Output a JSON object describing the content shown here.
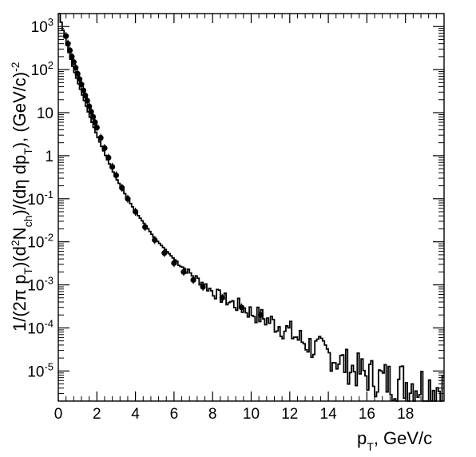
{
  "chart_data": {
    "type": "line",
    "xlabel": "p_T, GeV/c",
    "ylabel": "1/(2π p_T)(d²N_ch)/(dη dp_T), (GeV/c)⁻²",
    "xlim": [
      0,
      20
    ],
    "ylim": [
      2e-06,
      2000
    ],
    "yscale": "log",
    "grid": false,
    "legend": "none",
    "x_ticks": [
      0,
      2,
      4,
      6,
      8,
      10,
      12,
      14,
      16,
      18
    ],
    "x_tick_labels": [
      "0",
      "2",
      "4",
      "6",
      "8",
      "10",
      "12",
      "14",
      "16",
      "18"
    ],
    "y_ticks": [
      1e-05,
      0.0001,
      0.001,
      0.01,
      0.1,
      1,
      10,
      100,
      1000
    ],
    "y_tick_labels": [
      {
        "base": "10",
        "exp": "-5"
      },
      {
        "base": "10",
        "exp": "-4"
      },
      {
        "base": "10",
        "exp": "-3"
      },
      {
        "base": "10",
        "exp": "-2"
      },
      {
        "base": "10",
        "exp": "-1"
      },
      {
        "base": "1",
        "exp": ""
      },
      {
        "base": "10",
        "exp": ""
      },
      {
        "base": "10",
        "exp": "2"
      },
      {
        "base": "10",
        "exp": "3"
      }
    ],
    "series": [
      {
        "style": "histogram-step",
        "x": [
          0.05,
          0.2,
          0.5,
          0.8,
          1.2,
          1.6,
          2.0,
          2.5,
          3.0,
          3.5,
          4.0,
          4.5,
          5.0,
          5.5,
          6.0,
          6.5,
          7.0,
          7.5,
          8.0,
          8.5,
          9.0,
          9.5,
          10.0,
          10.5,
          11.0,
          11.5,
          12.0,
          12.5,
          13.0,
          13.5,
          14.0,
          14.5,
          15.0,
          15.5,
          16.0,
          16.5,
          17.0,
          17.5,
          18.0,
          18.5,
          19.0,
          19.5,
          19.9
        ],
        "y": [
          2000,
          1000,
          300,
          100,
          30,
          9,
          3,
          0.9,
          0.3,
          0.12,
          0.05,
          0.025,
          0.012,
          0.007,
          0.004,
          0.0025,
          0.0016,
          0.0011,
          0.0007,
          0.0005,
          0.00038,
          0.0003,
          0.00023,
          0.00018,
          0.00014,
          0.00011,
          8e-05,
          5.5e-05,
          4e-05,
          3e-05,
          2.5e-05,
          1.8e-05,
          1.3e-05,
          1e-05,
          8e-06,
          7e-06,
          6e-06,
          6e-06,
          5.5e-06,
          5e-06,
          4.5e-06,
          4.5e-06,
          4e-06
        ]
      },
      {
        "style": "markers",
        "x": [
          0.4,
          0.5,
          0.6,
          0.7,
          0.8,
          0.9,
          1.0,
          1.1,
          1.2,
          1.3,
          1.4,
          1.5,
          1.6,
          1.7,
          1.8,
          1.9,
          2.0,
          2.2,
          2.4,
          2.6,
          2.8,
          3.0,
          3.3,
          3.6,
          4.0,
          4.5,
          5.0,
          5.5,
          6.0,
          6.5,
          7.0,
          7.5,
          8.5,
          9.5,
          10.5
        ],
        "y": [
          600,
          400,
          280,
          200,
          150,
          110,
          80,
          60,
          45,
          33,
          25,
          19,
          14,
          10.5,
          8,
          6,
          4.5,
          2.6,
          1.5,
          0.9,
          0.55,
          0.35,
          0.18,
          0.1,
          0.05,
          0.022,
          0.011,
          0.0055,
          0.0032,
          0.002,
          0.0013,
          0.0009,
          0.0005,
          0.0003,
          0.0002
        ]
      }
    ]
  }
}
